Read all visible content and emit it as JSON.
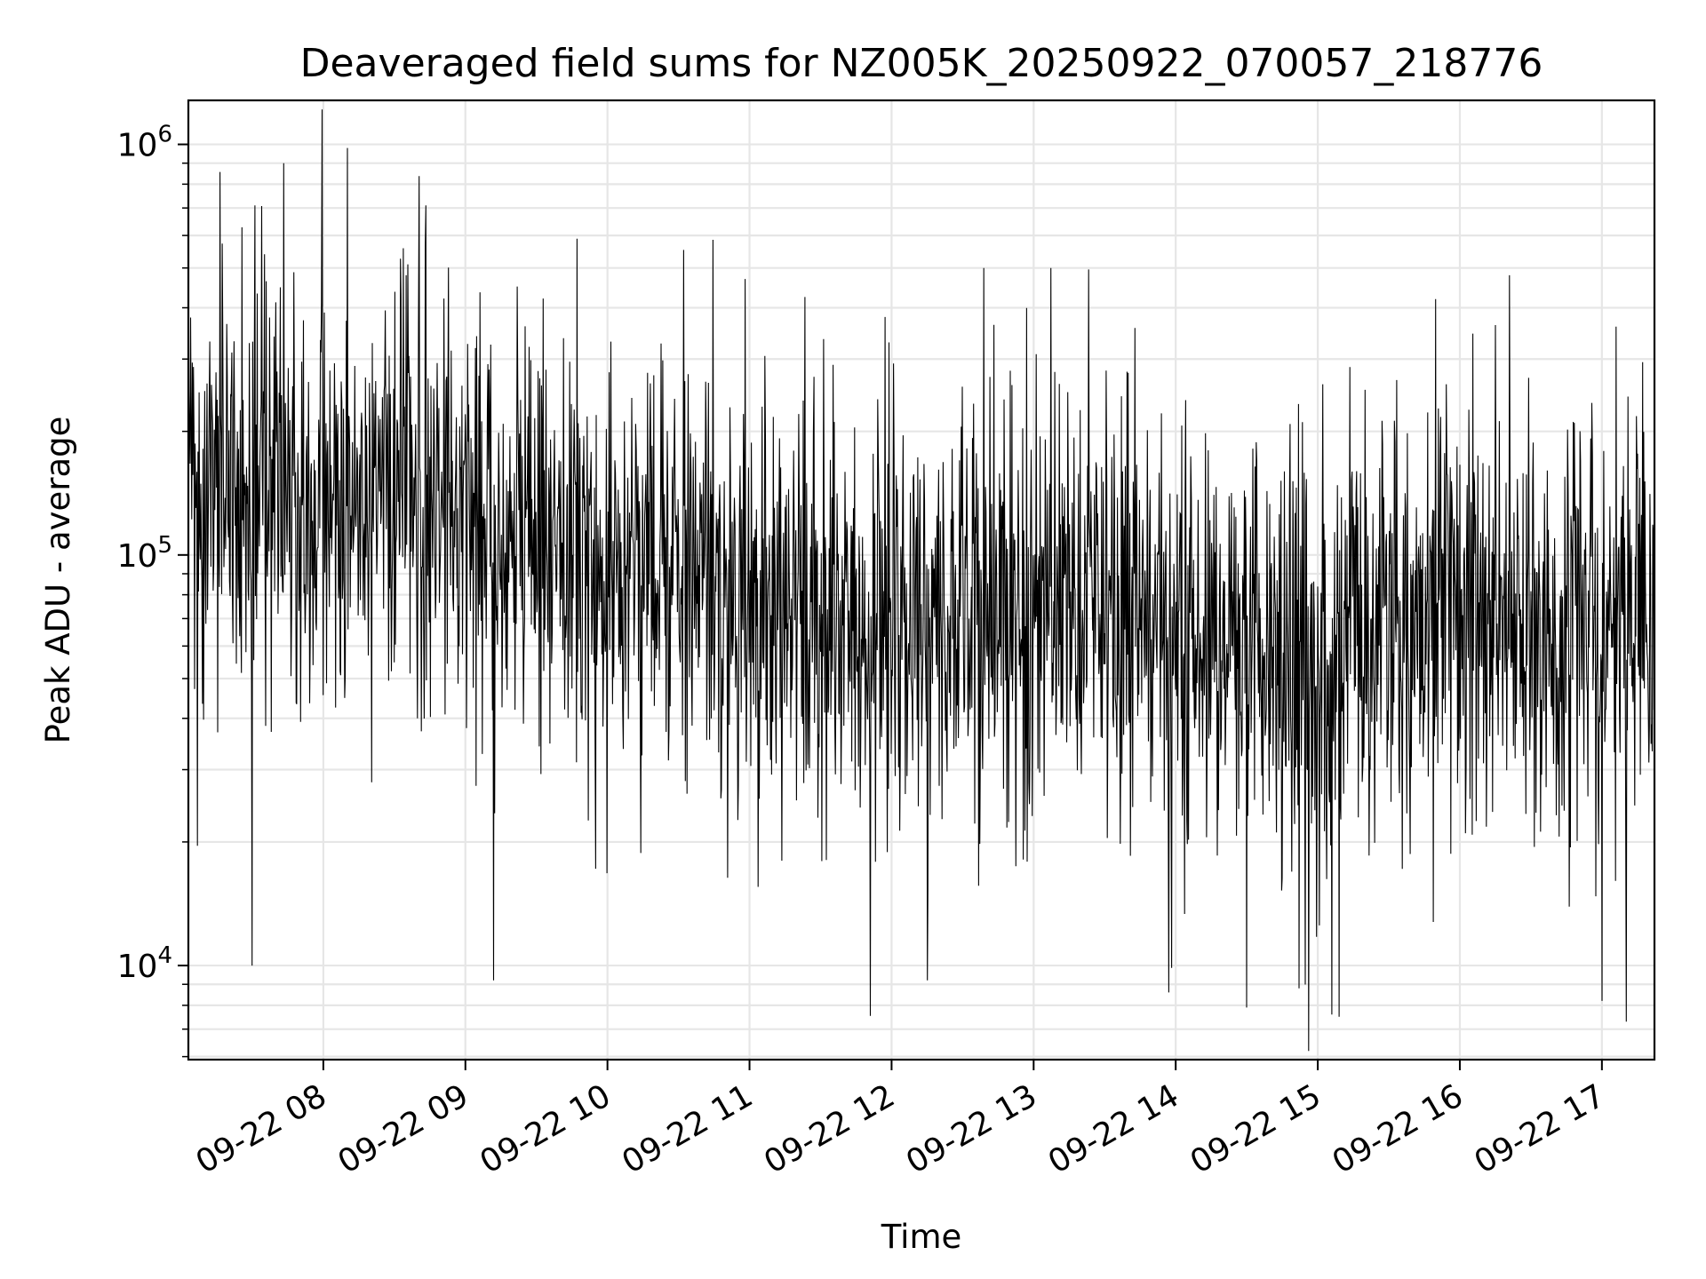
{
  "chart_data": {
    "type": "line",
    "title": "Deaveraged field sums for NZ005K_20250922_070057_218776",
    "xlabel": "Time",
    "ylabel": "Peak ADU - average",
    "yscale": "log",
    "ylim": [
      5900,
      1280000
    ],
    "xlim_hours": [
      7.05,
      17.37
    ],
    "grid": true,
    "x_ticks": [
      {
        "hour": 8,
        "label": "09-22 08"
      },
      {
        "hour": 9,
        "label": "09-22 09"
      },
      {
        "hour": 10,
        "label": "09-22 10"
      },
      {
        "hour": 11,
        "label": "09-22 11"
      },
      {
        "hour": 12,
        "label": "09-22 12"
      },
      {
        "hour": 13,
        "label": "09-22 13"
      },
      {
        "hour": 14,
        "label": "09-22 14"
      },
      {
        "hour": 15,
        "label": "09-22 15"
      },
      {
        "hour": 16,
        "label": "09-22 16"
      },
      {
        "hour": 17,
        "label": "09-22 17"
      }
    ],
    "y_ticks": [
      {
        "value": 10000,
        "base": "10",
        "exp": "4"
      },
      {
        "value": 100000,
        "base": "10",
        "exp": "5"
      },
      {
        "value": 1000000,
        "base": "10",
        "exp": "6"
      }
    ],
    "series": [
      {
        "name": "Deaveraged field sums",
        "color": "#000000",
        "n_points": 2600,
        "envelope_hours": [
          7.05,
          8.0,
          9.0,
          10.0,
          11.0,
          12.0,
          13.0,
          14.0,
          15.0,
          16.0,
          17.0,
          17.37
        ],
        "envelope_median": [
          130000,
          150000,
          130000,
          100000,
          75000,
          65000,
          75000,
          70000,
          55000,
          75000,
          60000,
          80000
        ],
        "notable_peaks": [
          {
            "hour": 7.72,
            "value": 900000
          },
          {
            "hour": 8.17,
            "value": 980000
          },
          {
            "hour": 8.72,
            "value": 710000
          },
          {
            "hour": 12.65,
            "value": 500000
          },
          {
            "hour": 13.12,
            "value": 500000
          },
          {
            "hour": 10.97,
            "value": 470000
          },
          {
            "hour": 16.35,
            "value": 480000
          },
          {
            "hour": 15.83,
            "value": 420000
          },
          {
            "hour": 17.1,
            "value": 360000
          }
        ],
        "notable_dips": [
          {
            "hour": 7.5,
            "value": 10000
          },
          {
            "hour": 9.2,
            "value": 9200
          },
          {
            "hour": 12.25,
            "value": 9200
          },
          {
            "hour": 13.95,
            "value": 8600
          },
          {
            "hour": 14.5,
            "value": 7900
          },
          {
            "hour": 15.1,
            "value": 7600
          },
          {
            "hour": 15.15,
            "value": 7500
          },
          {
            "hour": 17.0,
            "value": 8200
          },
          {
            "hour": 17.17,
            "value": 7300
          }
        ]
      }
    ]
  }
}
